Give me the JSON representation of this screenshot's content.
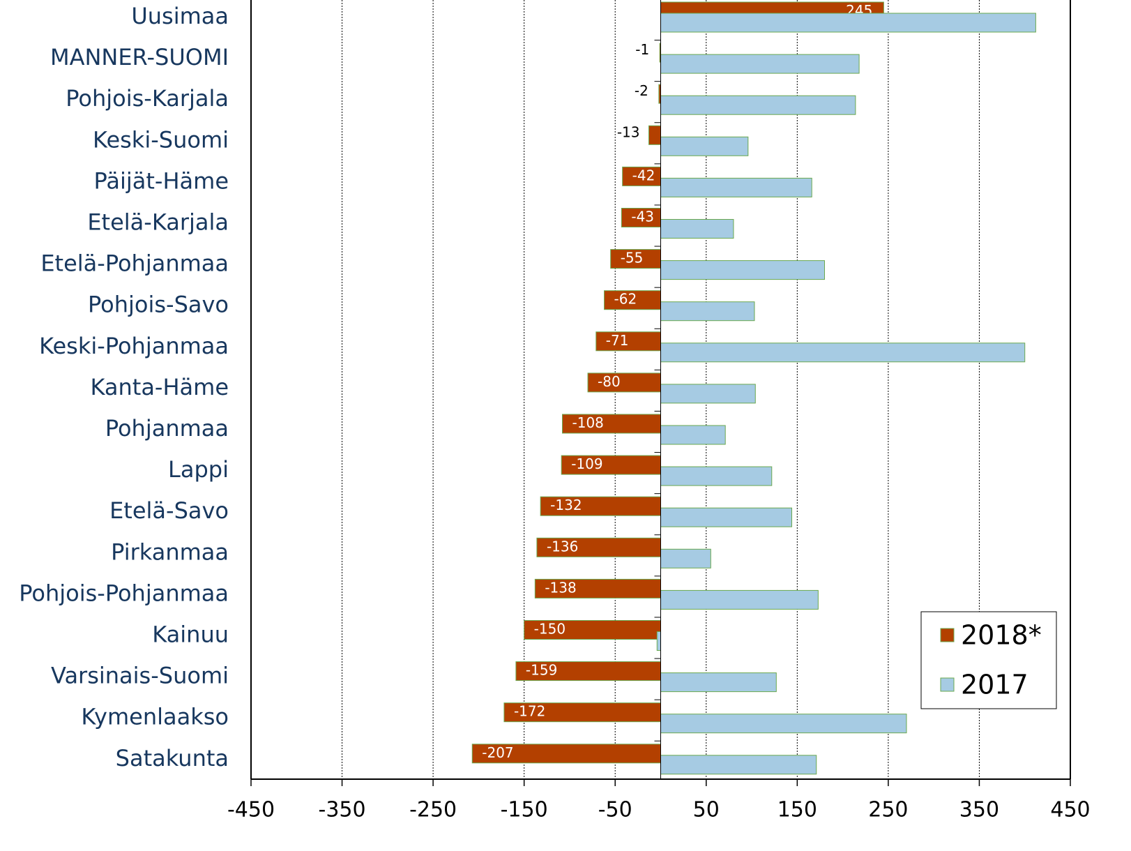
{
  "chart_data": {
    "type": "hbar",
    "categories": [
      "Uusimaa",
      "MANNER-SUOMI",
      "Pohjois-Karjala",
      "Keski-Suomi",
      "Päijät-Häme",
      "Etelä-Karjala",
      "Etelä-Pohjanmaa",
      "Pohjois-Savo",
      "Keski-Pohjanmaa",
      "Kanta-Häme",
      "Pohjanmaa",
      "Lappi",
      "Etelä-Savo",
      "Pirkanmaa",
      "Pohjois-Pohjanmaa",
      "Kainuu",
      "Varsinais-Suomi",
      "Kymenlaakso",
      "Satakunta"
    ],
    "series": [
      {
        "name": "2018*",
        "color": "#b34000",
        "values": [
          245,
          -1,
          -2,
          -13,
          -42,
          -43,
          -55,
          -62,
          -71,
          -80,
          -108,
          -109,
          -132,
          -136,
          -138,
          -150,
          -159,
          -172,
          -207
        ]
      },
      {
        "name": "2017",
        "color": "#a6cbe3",
        "values": [
          412,
          218,
          214,
          96,
          166,
          80,
          180,
          103,
          400,
          104,
          71,
          122,
          144,
          55,
          173,
          -4,
          127,
          270,
          171
        ]
      }
    ],
    "xlim": [
      -450,
      450
    ],
    "xticks": [
      -450,
      -350,
      -250,
      -150,
      -50,
      50,
      150,
      250,
      350,
      450
    ],
    "grid": true,
    "legend": "lower right"
  }
}
